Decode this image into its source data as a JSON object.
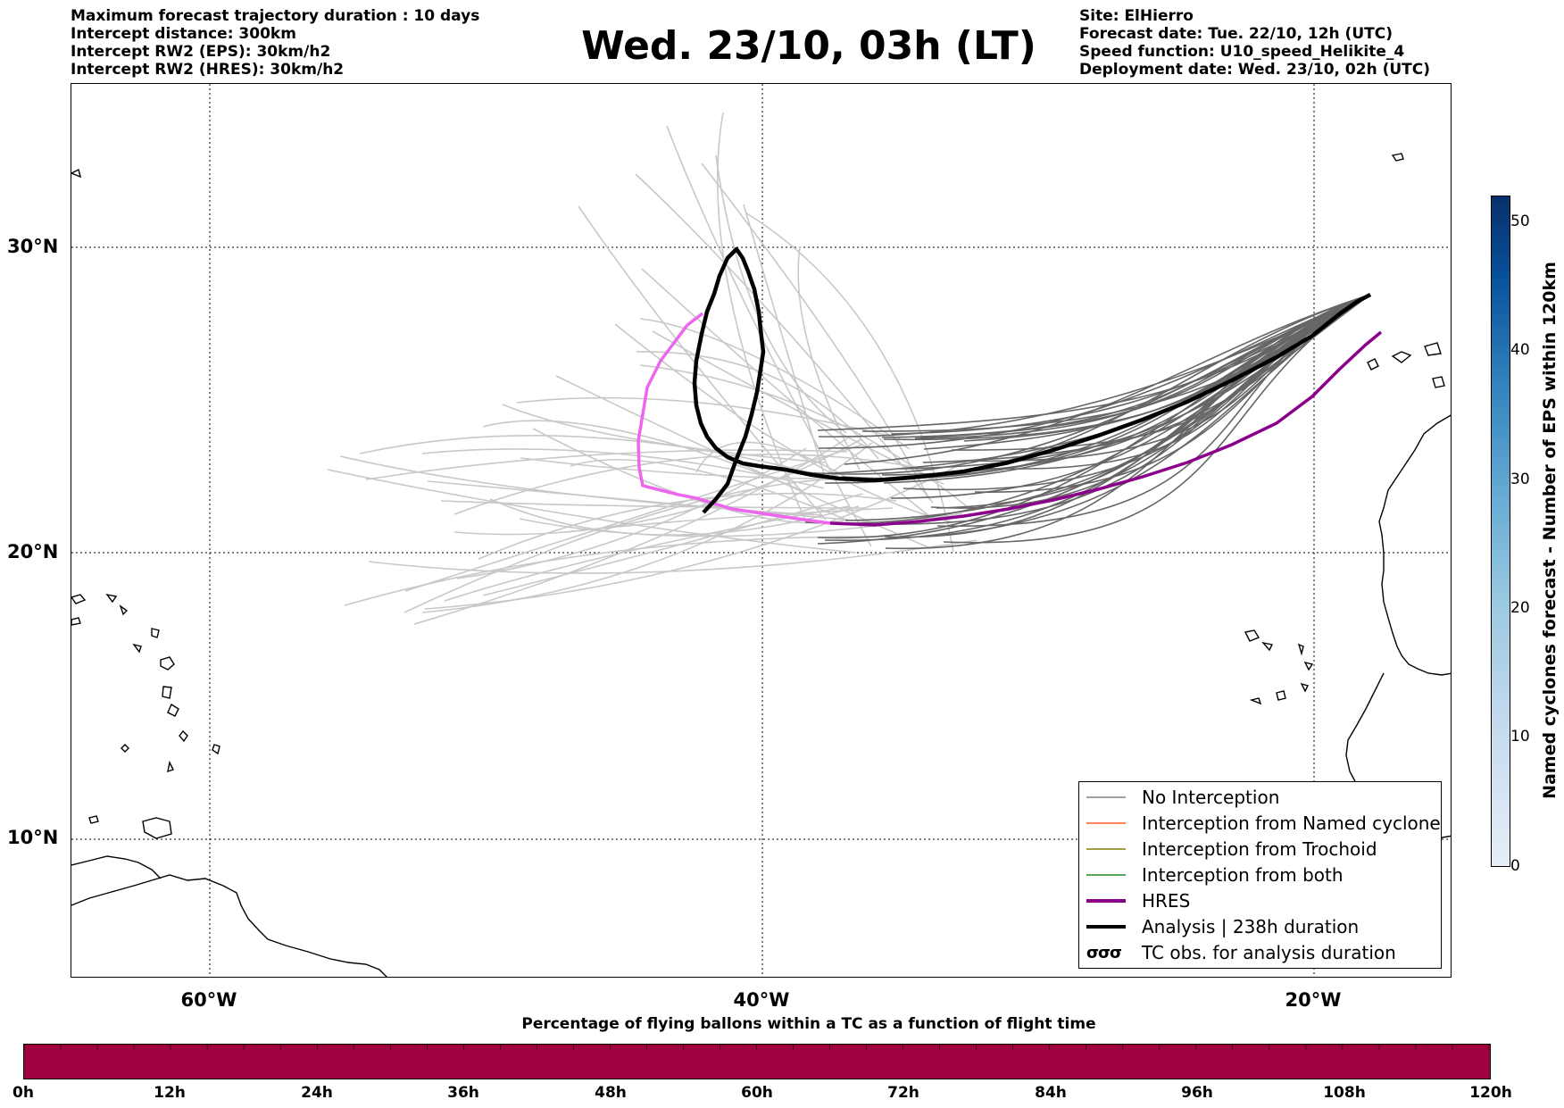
{
  "header": {
    "left": [
      "Maximum forecast trajectory duration : 10 days",
      "Intercept distance: 300km",
      "Intercept RW2 (EPS):  30km/h2",
      "Intercept RW2 (HRES): 30km/h2"
    ],
    "title": "Wed. 23/10, 03h (LT)",
    "right": [
      "Site: ElHierro",
      "Forecast date: Tue. 22/10, 12h (UTC)",
      "Speed function: U10_speed_Helikite_4",
      "Deployment date: Wed. 23/10, 02h (UTC)"
    ]
  },
  "map": {
    "lat_labels": [
      "30°N",
      "20°N",
      "10°N"
    ],
    "lon_labels": [
      "60°W",
      "40°W",
      "20°W"
    ],
    "lon_range": [
      -65,
      -15
    ],
    "lat_range": [
      5.5,
      34.8
    ],
    "grid": true,
    "colors": {
      "no_interception": "#666666",
      "no_interception_light": "#c8c8c8",
      "hres": "#8b008b",
      "hres_light": "#ee66ee",
      "analysis": "#000000"
    }
  },
  "legend": {
    "items": [
      {
        "label": "No Interception",
        "color": "#808080",
        "width": 1.5,
        "kind": "line"
      },
      {
        "label": "Interception from Named cyclone",
        "color": "#ff5a1f",
        "width": 1.5,
        "kind": "line"
      },
      {
        "label": "Interception from Trochoid",
        "color": "#808000",
        "width": 1.5,
        "kind": "line"
      },
      {
        "label": "Interception from both",
        "color": "#228b22",
        "width": 1.5,
        "kind": "line"
      },
      {
        "label": "HRES",
        "color": "#8b008b",
        "width": 4,
        "kind": "line"
      },
      {
        "label": "Analysis | 238h duration",
        "color": "#000000",
        "width": 4,
        "kind": "line"
      },
      {
        "label": "TC obs. for analysis duration",
        "symbol": "σσσ",
        "kind": "symbol"
      }
    ]
  },
  "colorbar": {
    "label": "Named cyclones forecast - Number of EPS within 120km",
    "ticks": [
      "0",
      "10",
      "20",
      "30",
      "40",
      "50"
    ],
    "range": [
      0,
      52
    ]
  },
  "timebar": {
    "title": "Percentage of flying ballons within a TC as a function of flight time",
    "ticks": [
      "0h",
      "12h",
      "24h",
      "36h",
      "48h",
      "60h",
      "72h",
      "84h",
      "96h",
      "108h",
      "120h"
    ],
    "color": "#a0003e"
  }
}
